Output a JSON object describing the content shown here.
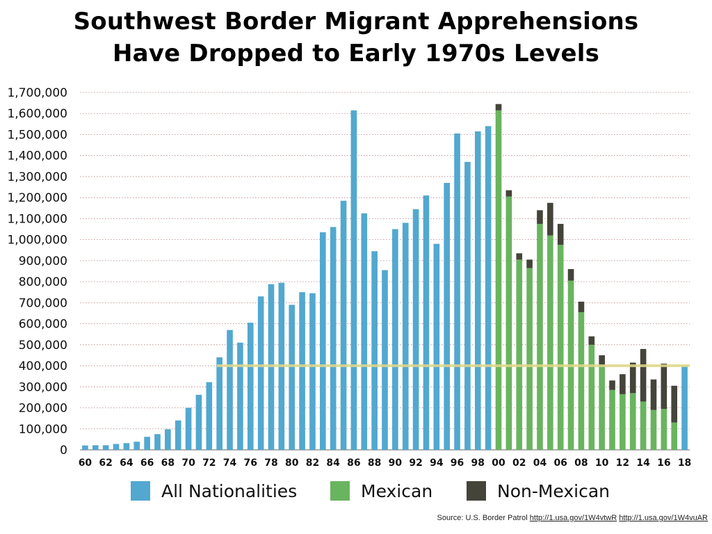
{
  "title_line1": "Southwest Border Migrant Apprehensions",
  "title_line2": "Have Dropped to Early 1970s Levels",
  "source": {
    "prefix": "Source: U.S. Border Patrol",
    "link1": "http://1.usa.gov/1W4vtwR",
    "link2": "http://1.usa.gov/1W4vuAR"
  },
  "legend": [
    {
      "label": "All Nationalities",
      "color": "#52a8cf"
    },
    {
      "label": "Mexican",
      "color": "#69b45f"
    },
    {
      "label": "Non-Mexican",
      "color": "#45443a"
    }
  ],
  "chart_data": {
    "type": "bar",
    "stacked": true,
    "ylim": [
      0,
      1700000
    ],
    "ytick_step": 100000,
    "grid": true,
    "legend_position": "bottom",
    "reference_line": {
      "value": 400000,
      "color": "#e0d98a"
    },
    "x_tick_labels": [
      "60",
      "62",
      "64",
      "66",
      "68",
      "70",
      "72",
      "74",
      "76",
      "78",
      "80",
      "82",
      "84",
      "86",
      "88",
      "90",
      "92",
      "94",
      "96",
      "98",
      "00",
      "02",
      "04",
      "06",
      "08",
      "10",
      "12",
      "14",
      "16",
      "18"
    ],
    "categories": [
      "60",
      "61",
      "62",
      "63",
      "64",
      "65",
      "66",
      "67",
      "68",
      "69",
      "70",
      "71",
      "72",
      "73",
      "74",
      "75",
      "76",
      "77",
      "78",
      "79",
      "80",
      "81",
      "82",
      "83",
      "84",
      "85",
      "86",
      "87",
      "88",
      "89",
      "90",
      "91",
      "92",
      "93",
      "94",
      "95",
      "96",
      "97",
      "98",
      "99",
      "00",
      "01",
      "02",
      "03",
      "04",
      "05",
      "06",
      "07",
      "08",
      "09",
      "10",
      "11",
      "12",
      "13",
      "14",
      "15",
      "16",
      "17",
      "18"
    ],
    "series": [
      {
        "name": "All Nationalities",
        "color": "#52a8cf",
        "values": [
          21000,
          22000,
          22000,
          28000,
          32000,
          39000,
          62000,
          75000,
          98000,
          140000,
          200000,
          262000,
          322000,
          440000,
          570000,
          510000,
          605000,
          730000,
          788000,
          795000,
          690000,
          750000,
          745000,
          1035000,
          1060000,
          1185000,
          1615000,
          1125000,
          945000,
          855000,
          1050000,
          1080000,
          1145000,
          1210000,
          980000,
          1270000,
          1505000,
          1370000,
          1515000,
          1540000,
          null,
          null,
          null,
          null,
          null,
          null,
          null,
          null,
          null,
          null,
          null,
          null,
          null,
          null,
          null,
          null,
          null,
          null,
          400000
        ]
      },
      {
        "name": "Mexican",
        "color": "#69b45f",
        "values": [
          null,
          null,
          null,
          null,
          null,
          null,
          null,
          null,
          null,
          null,
          null,
          null,
          null,
          null,
          null,
          null,
          null,
          null,
          null,
          null,
          null,
          null,
          null,
          null,
          null,
          null,
          null,
          null,
          null,
          null,
          null,
          null,
          null,
          null,
          null,
          null,
          null,
          null,
          null,
          null,
          1615000,
          1205000,
          905000,
          865000,
          1075000,
          1020000,
          975000,
          805000,
          655000,
          500000,
          400000,
          285000,
          265000,
          270000,
          230000,
          190000,
          195000,
          130000,
          null
        ]
      },
      {
        "name": "Non-Mexican",
        "color": "#45443a",
        "values": [
          null,
          null,
          null,
          null,
          null,
          null,
          null,
          null,
          null,
          null,
          null,
          null,
          null,
          null,
          null,
          null,
          null,
          null,
          null,
          null,
          null,
          null,
          null,
          null,
          null,
          null,
          null,
          null,
          null,
          null,
          null,
          null,
          null,
          null,
          null,
          null,
          null,
          null,
          null,
          null,
          30000,
          30000,
          30000,
          40000,
          65000,
          155000,
          100000,
          55000,
          50000,
          40000,
          50000,
          45000,
          95000,
          145000,
          250000,
          145000,
          215000,
          175000,
          null
        ]
      }
    ]
  }
}
